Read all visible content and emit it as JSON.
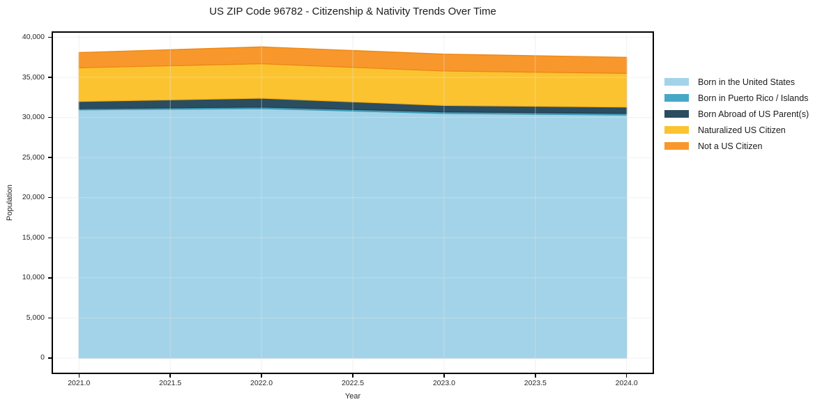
{
  "title": "US ZIP Code 96782 - Citizenship & Nativity Trends Over Time",
  "chart_data": {
    "type": "area",
    "stacked": true,
    "title": "US ZIP Code 96782 - Citizenship & Nativity Trends Over Time",
    "xlabel": "Year",
    "ylabel": "Population",
    "x": [
      2021,
      2022,
      2023,
      2024
    ],
    "series": [
      {
        "name": "Born in the United States",
        "values": [
          30950,
          31100,
          30500,
          30300
        ],
        "color": "#a3d3e8",
        "edge": "#8ac2dd"
      },
      {
        "name": "Born in Puerto Rico / Islands",
        "values": [
          150,
          200,
          200,
          200
        ],
        "color": "#46a8c6",
        "edge": "#3b94b0"
      },
      {
        "name": "Born Abroad of US Parent(s)",
        "values": [
          900,
          1100,
          800,
          800
        ],
        "color": "#2b4d60",
        "edge": "#233e4e"
      },
      {
        "name": "Naturalized US Citizen",
        "values": [
          4200,
          4300,
          4300,
          4200
        ],
        "color": "#fcc331",
        "edge": "#f3ae18"
      },
      {
        "name": "Not a US Citizen",
        "values": [
          1900,
          2100,
          2100,
          2000
        ],
        "color": "#f8982c",
        "edge": "#ee8513"
      }
    ],
    "xlim": [
      2020.85,
      2024.15
    ],
    "ylim": [
      -2000,
      40740
    ],
    "xticks": {
      "values": [
        2021,
        2021.5,
        2022,
        2022.5,
        2023,
        2023.5,
        2024
      ],
      "labels": [
        "2021.0",
        "2021.5",
        "2022.0",
        "2022.5",
        "2023.0",
        "2023.5",
        "2024.0"
      ]
    },
    "yticks": {
      "values": [
        0,
        5000,
        10000,
        15000,
        20000,
        25000,
        30000,
        35000,
        40000
      ],
      "labels": [
        "0",
        "5,000",
        "10,000",
        "15,000",
        "20,000",
        "25,000",
        "30,000",
        "35,000",
        "40,000"
      ]
    },
    "grid": true,
    "grid_color": "#e3e3e3",
    "spine_color": "#000000",
    "legend_position": "right"
  }
}
